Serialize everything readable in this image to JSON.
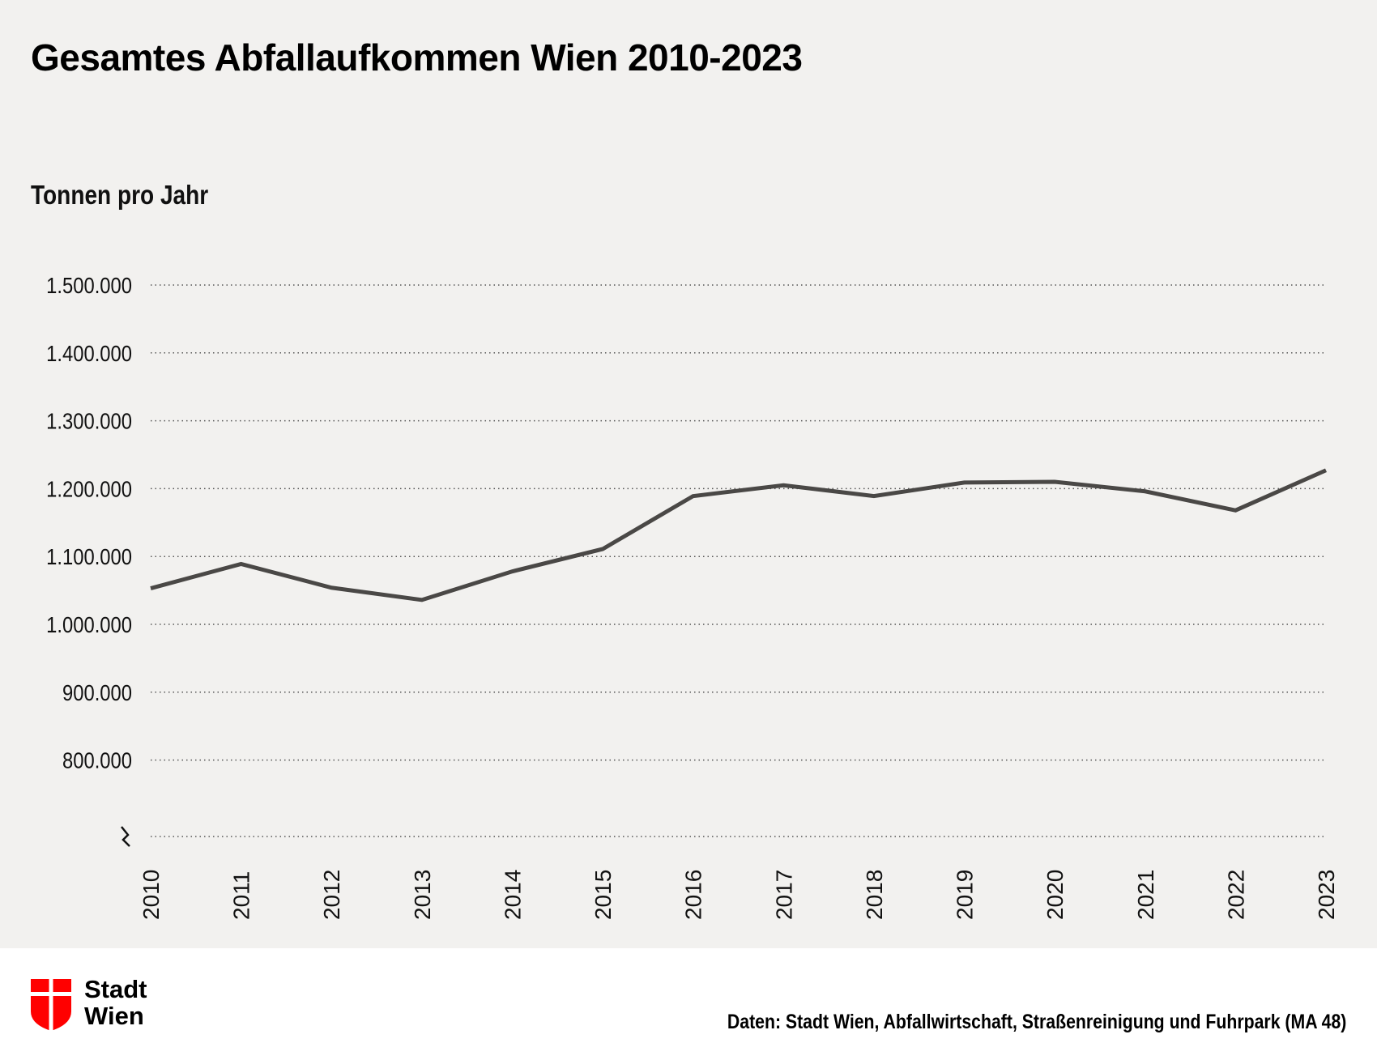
{
  "chart_data": {
    "type": "line",
    "title": "Gesamtes Abfallaufkommen Wien 2010-2023",
    "ylabel": "Tonnen pro Jahr",
    "xlabel": "",
    "categories": [
      "2010",
      "2011",
      "2012",
      "2013",
      "2014",
      "2015",
      "2016",
      "2017",
      "2018",
      "2019",
      "2020",
      "2021",
      "2022",
      "2023"
    ],
    "values": [
      1053000,
      1089000,
      1054000,
      1036000,
      1078000,
      1111000,
      1189000,
      1205000,
      1189000,
      1209000,
      1210000,
      1196000,
      1168000,
      1227000
    ],
    "ylim": [
      700000,
      1500000
    ],
    "yticks": [
      800000,
      900000,
      1000000,
      1100000,
      1200000,
      1300000,
      1400000,
      1500000
    ],
    "ytick_labels": [
      "800.000",
      "900.000",
      "1.000.000",
      "1.100.000",
      "1.200.000",
      "1.300.000",
      "1.400.000",
      "1.500.000"
    ],
    "axis_break": true,
    "grid": "horizontal dotted",
    "legend": "none",
    "line_color": "#4a4846"
  },
  "footer": {
    "logo_text_line1": "Stadt",
    "logo_text_line2": "Wien",
    "logo_color": "#ff0000",
    "source": "Daten: Stadt Wien, Abfallwirtschaft, Straßenreinigung und Fuhrpark (MA 48)"
  }
}
